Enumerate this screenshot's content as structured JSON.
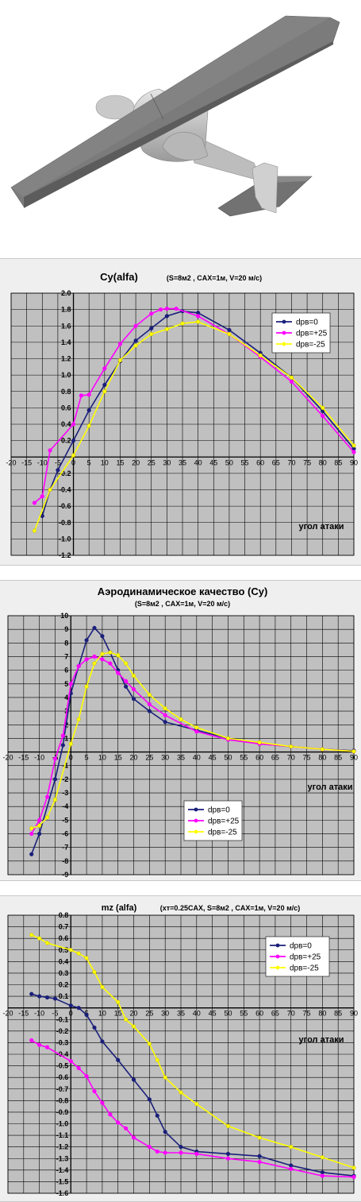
{
  "chart_data": [
    {
      "type": "line",
      "title": "Cy(alfa)",
      "subtitle": "(S=8м2 , CAX=1м, V=20 м/с)",
      "xlabel": "угол атаки",
      "ylabel": "",
      "xlim": [
        -20,
        90
      ],
      "ylim": [
        -1.2,
        2.0
      ],
      "xticks": [
        -20,
        -15,
        -10,
        -5,
        0,
        5,
        10,
        15,
        20,
        25,
        30,
        35,
        40,
        45,
        50,
        55,
        60,
        65,
        70,
        75,
        80,
        85,
        90
      ],
      "yticks": [
        -1.2,
        -1.0,
        -0.8,
        -0.6,
        -0.4,
        -0.2,
        0,
        0.2,
        0.4,
        0.6,
        0.8,
        1.0,
        1.2,
        1.4,
        1.6,
        1.8,
        2.0
      ],
      "grid": true,
      "legend_position": "top-right",
      "series": [
        {
          "name": "dpв=0",
          "color": "#1a1f7a",
          "x": [
            -10,
            -7.5,
            -5,
            0,
            5,
            10,
            15,
            20,
            25,
            30,
            35,
            40,
            50,
            60,
            70,
            80,
            90
          ],
          "y": [
            -0.72,
            -0.4,
            -0.16,
            0.2,
            0.57,
            0.88,
            1.17,
            1.42,
            1.57,
            1.72,
            1.78,
            1.76,
            1.55,
            1.27,
            0.97,
            0.56,
            0.1
          ]
        },
        {
          "name": "dpв=+25",
          "color": "#ff00ff",
          "x": [
            -12.5,
            -10,
            -7.5,
            0,
            2.5,
            5,
            10,
            15,
            20,
            25,
            28,
            30,
            33,
            40,
            50,
            60,
            70,
            80,
            90
          ],
          "y": [
            -0.56,
            -0.48,
            0.08,
            0.4,
            0.75,
            0.76,
            1.08,
            1.38,
            1.6,
            1.75,
            1.8,
            1.81,
            1.81,
            1.72,
            1.5,
            1.22,
            0.92,
            0.5,
            0.06
          ]
        },
        {
          "name": "dpв=-25",
          "color": "#ffff00",
          "x": [
            -12.5,
            -7.5,
            0,
            5,
            10,
            15,
            20,
            25,
            30,
            35,
            40,
            50,
            60,
            70,
            80,
            90
          ],
          "y": [
            -0.9,
            -0.4,
            0.02,
            0.38,
            0.8,
            1.18,
            1.36,
            1.5,
            1.56,
            1.63,
            1.65,
            1.5,
            1.24,
            0.97,
            0.6,
            0.14
          ]
        }
      ]
    },
    {
      "type": "line",
      "title": "Аэродинамическое качество (Cy)",
      "subtitle": "(S=8м2 , CAX=1м, V=20 м/с)",
      "xlabel": "угол атаки",
      "ylabel": "",
      "xlim": [
        -20,
        90
      ],
      "ylim": [
        -9,
        10
      ],
      "xticks": [
        -20,
        -15,
        -10,
        -5,
        0,
        5,
        10,
        15,
        20,
        25,
        30,
        35,
        40,
        45,
        50,
        55,
        60,
        65,
        70,
        75,
        80,
        85,
        90
      ],
      "yticks": [
        -9,
        -8,
        -7,
        -6,
        -5,
        -4,
        -3,
        -2,
        -1,
        0,
        1,
        2,
        3,
        4,
        5,
        6,
        7,
        8,
        9,
        10
      ],
      "grid": true,
      "legend_position": "bottom-center",
      "series": [
        {
          "name": "dpв=0",
          "color": "#1a1f7a",
          "x": [
            -12.5,
            -10,
            -5,
            -2.5,
            0,
            2.5,
            5,
            7.5,
            10,
            12.5,
            15,
            17.5,
            20,
            25,
            30,
            40,
            50,
            60,
            70,
            80,
            90
          ],
          "y": [
            -7.5,
            -6.0,
            -2.0,
            0.5,
            4.3,
            6.3,
            8.2,
            9.1,
            8.5,
            7.3,
            6.0,
            4.8,
            3.9,
            3.0,
            2.2,
            1.6,
            1.0,
            0.6,
            0.4,
            0.2,
            0.1
          ]
        },
        {
          "name": "dpв=+25",
          "color": "#ff00ff",
          "x": [
            -12.5,
            -10,
            -7.5,
            -5,
            -2.5,
            0,
            2.5,
            5,
            7.5,
            10,
            12.5,
            15,
            17.5,
            20,
            25,
            30,
            40,
            50,
            60,
            70,
            80,
            90
          ],
          "y": [
            -6.0,
            -5.0,
            -3.3,
            -0.5,
            1.2,
            5.0,
            6.3,
            6.8,
            7.0,
            6.8,
            6.5,
            5.8,
            5.2,
            4.6,
            3.5,
            2.7,
            1.5,
            0.9,
            0.6,
            0.4,
            0.2,
            0.05
          ]
        },
        {
          "name": "dpв=-25",
          "color": "#ffff00",
          "x": [
            -12.5,
            -10,
            -7.5,
            -5,
            0,
            2.5,
            5,
            7.5,
            10,
            12.5,
            15,
            17.5,
            20,
            25,
            30,
            35,
            40,
            50,
            60,
            70,
            80,
            90
          ],
          "y": [
            -5.6,
            -5.4,
            -4.8,
            -3.5,
            0.6,
            2.4,
            4.8,
            6.5,
            7.2,
            7.3,
            7.1,
            6.5,
            5.6,
            4.2,
            3.2,
            2.4,
            1.8,
            1.0,
            0.7,
            0.4,
            0.2,
            0.05
          ]
        }
      ]
    },
    {
      "type": "line",
      "title": "mz (alfa)",
      "subtitle": "(xт=0.25CAX, S=8м2 , CAX=1м, V=20 м/с)",
      "xlabel": "угол атаки",
      "ylabel": "",
      "xlim": [
        -20,
        90
      ],
      "ylim": [
        -1.6,
        0.8
      ],
      "xticks": [
        -20,
        -15,
        -10,
        -5,
        0,
        5,
        10,
        15,
        20,
        25,
        30,
        35,
        40,
        45,
        50,
        55,
        60,
        65,
        70,
        75,
        80,
        85,
        90
      ],
      "yticks": [
        -1.6,
        -1.5,
        -1.4,
        -1.3,
        -1.2,
        -1.1,
        -1.0,
        -0.9,
        -0.8,
        -0.7,
        -0.6,
        -0.5,
        -0.4,
        -0.3,
        -0.2,
        -0.1,
        0,
        0.1,
        0.2,
        0.3,
        0.4,
        0.5,
        0.6,
        0.7,
        0.8
      ],
      "grid": true,
      "legend_position": "top-right",
      "series": [
        {
          "name": "dpв=0",
          "color": "#1a1f7a",
          "x": [
            -12.5,
            -10,
            -7.5,
            -5,
            0,
            2.5,
            5,
            7.5,
            10,
            15,
            20,
            25,
            27.5,
            30,
            35,
            40,
            50,
            60,
            70,
            80,
            90
          ],
          "y": [
            0.12,
            0.1,
            0.09,
            0.08,
            0.02,
            0.0,
            -0.06,
            -0.17,
            -0.29,
            -0.45,
            -0.62,
            -0.79,
            -0.93,
            -1.07,
            -1.2,
            -1.24,
            -1.26,
            -1.28,
            -1.36,
            -1.42,
            -1.45
          ]
        },
        {
          "name": "dpв=+25",
          "color": "#ff00ff",
          "x": [
            -12.5,
            -10,
            -7.5,
            0,
            2.5,
            5,
            7.5,
            10,
            12.5,
            15,
            17.5,
            20,
            25,
            27.5,
            30,
            35,
            40,
            50,
            60,
            70,
            80,
            90
          ],
          "y": [
            -0.28,
            -0.32,
            -0.34,
            -0.46,
            -0.52,
            -0.59,
            -0.72,
            -0.82,
            -0.92,
            -0.99,
            -1.04,
            -1.12,
            -1.2,
            -1.24,
            -1.25,
            -1.25,
            -1.26,
            -1.3,
            -1.33,
            -1.39,
            -1.45,
            -1.46
          ]
        },
        {
          "name": "dpв=-25",
          "color": "#ffff00",
          "x": [
            -12.5,
            -10,
            -7.5,
            0,
            2.5,
            5,
            7.5,
            10,
            15,
            17.5,
            20,
            25,
            27.5,
            30,
            35,
            40,
            50,
            60,
            70,
            80,
            90
          ],
          "y": [
            0.63,
            0.6,
            0.56,
            0.5,
            0.47,
            0.43,
            0.31,
            0.18,
            0.05,
            -0.1,
            -0.16,
            -0.31,
            -0.45,
            -0.6,
            -0.73,
            -0.83,
            -1.02,
            -1.12,
            -1.2,
            -1.29,
            -1.38
          ]
        }
      ]
    }
  ]
}
